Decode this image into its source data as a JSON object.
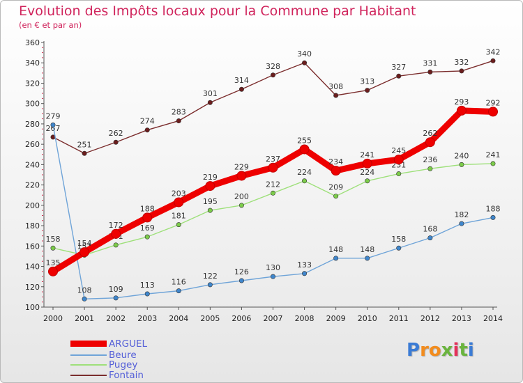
{
  "title": "Evolution des Impôts locaux pour la Commune par Habitant",
  "subtitle": "(en € et par an)",
  "brand": {
    "letters": [
      "P",
      "r",
      "o",
      "x",
      "i",
      "t",
      "i"
    ],
    "colors": [
      "#3a7bd5",
      "#f28c1e",
      "#f28c1e",
      "#6ab43e",
      "#e4325a",
      "#6ab43e",
      "#3a7bd5"
    ]
  },
  "chart_data": {
    "type": "line",
    "title": "Evolution des Impôts locaux pour la Commune par Habitant",
    "ylabel": "(en € et par an)",
    "xlabel": "",
    "ylim": [
      100,
      360
    ],
    "yticks": [
      100,
      120,
      140,
      160,
      180,
      200,
      220,
      240,
      260,
      280,
      300,
      320,
      340,
      360
    ],
    "categories": [
      "2000",
      "2001",
      "2002",
      "2003",
      "2004",
      "2005",
      "2006",
      "2007",
      "2008",
      "2009",
      "2010",
      "2011",
      "2012",
      "2013",
      "2014"
    ],
    "series": [
      {
        "name": "Fontain",
        "color": "#7b2d2d",
        "dot": "#6b1d1d",
        "values": [
          267,
          251,
          262,
          274,
          283,
          301,
          314,
          328,
          340,
          308,
          313,
          327,
          331,
          332,
          342
        ],
        "labels": [
          "267",
          "251",
          "262",
          "274",
          "283",
          "301",
          "314",
          "328",
          "340",
          "308",
          "313",
          "327",
          "331",
          "332",
          "342"
        ]
      },
      {
        "name": "Pugey",
        "color": "#9ee07a",
        "dot": "#7ccc4a",
        "values": [
          158,
          151,
          161,
          169,
          181,
          195,
          200,
          212,
          224,
          209,
          224,
          231,
          236,
          240,
          241
        ],
        "labels": [
          "158",
          "151",
          "161",
          "169",
          "181",
          "195",
          "200",
          "212",
          "224",
          "209",
          "224",
          "231",
          "236",
          "240",
          "241"
        ]
      },
      {
        "name": "Beure",
        "color": "#6fa4d8",
        "dot": "#3f86cc",
        "values": [
          279,
          108,
          109,
          113,
          116,
          122,
          126,
          130,
          133,
          148,
          148,
          158,
          168,
          182,
          188
        ],
        "labels": [
          "279",
          "108",
          "109",
          "113",
          "116",
          "122",
          "126",
          "130",
          "133",
          "148",
          "148",
          "158",
          "168",
          "182",
          "188"
        ]
      },
      {
        "name": "ARGUEL",
        "color": "#ee0000",
        "dot": "#ee0000",
        "values": [
          135,
          154,
          172,
          188,
          203,
          219,
          229,
          237,
          255,
          234,
          241,
          245,
          262,
          293,
          292
        ],
        "labels": [
          "135",
          "154",
          "172",
          "188",
          "203",
          "219",
          "229",
          "237",
          "255",
          "234",
          "241",
          "245",
          "262",
          "293",
          "292"
        ]
      }
    ],
    "legend": [
      "ARGUEL",
      "Beure",
      "Pugey",
      "Fontain"
    ],
    "legend_position": "bottom-left",
    "grid": false
  }
}
